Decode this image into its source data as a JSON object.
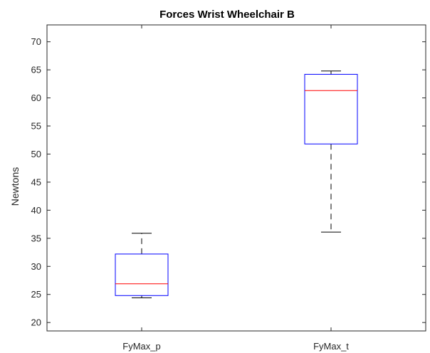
{
  "chart_data": {
    "type": "boxplot",
    "title": "Forces Wrist Wheelchair B",
    "xlabel": "",
    "ylabel": "Newtons",
    "ylim": [
      18.5,
      73
    ],
    "yticks": [
      20,
      25,
      30,
      35,
      40,
      45,
      50,
      55,
      60,
      65,
      70
    ],
    "grid": false,
    "categories": [
      "FyMax_p",
      "FyMax_t"
    ],
    "boxes": [
      {
        "category": "FyMax_p",
        "whisker_low": 24.4,
        "q1": 24.8,
        "median": 26.9,
        "q3": 32.2,
        "whisker_high": 35.9
      },
      {
        "category": "FyMax_t",
        "whisker_low": 36.1,
        "q1": 51.8,
        "median": 61.3,
        "q3": 64.2,
        "whisker_high": 64.8
      }
    ],
    "colors": {
      "box": "#0000ff",
      "median": "#ff0000",
      "whisker": "#000000",
      "axis": "#262626"
    }
  }
}
